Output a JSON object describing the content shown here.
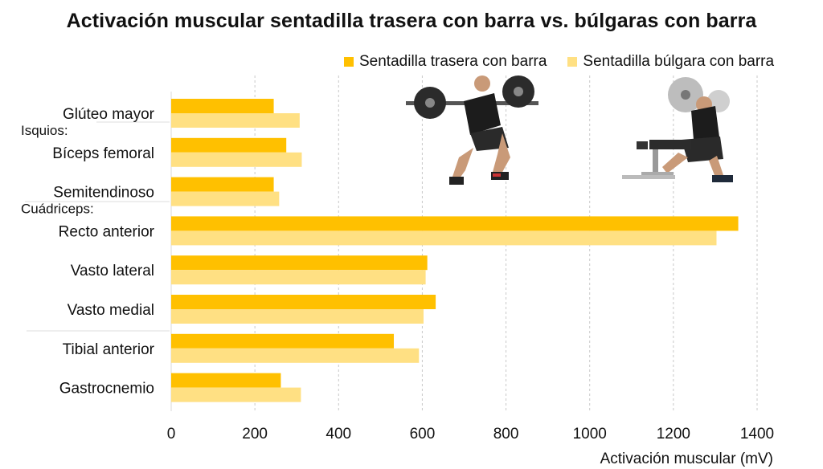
{
  "colors": {
    "squat": "#FFC000",
    "bulgarian": "#FFE083",
    "grid": "#c8c8c8",
    "text": "#111111"
  },
  "chart_data": {
    "type": "bar",
    "orientation": "horizontal",
    "title": "Activación muscular sentadilla trasera con barra vs. búlgaras con barra",
    "xlabel": "Activación muscular (mV)",
    "ylabel": "",
    "xlim": [
      0,
      1400
    ],
    "xticks": [
      0,
      200,
      400,
      600,
      800,
      1000,
      1200,
      1400
    ],
    "grid": "vertical dashed",
    "legend_position": "top-right",
    "categories": [
      "Glúteo mayor",
      "Bíceps femoral",
      "Semitendinoso",
      "Recto anterior",
      "Vasto lateral",
      "Vasto medial",
      "Tibial anterior",
      "Gastrocnemio"
    ],
    "group_labels": [
      {
        "text": "Isquios:",
        "before_category": 1
      },
      {
        "text": "Cuádriceps:",
        "before_category": 3
      }
    ],
    "series": [
      {
        "name": "Sentadilla trasera con barra",
        "values": [
          245,
          275,
          245,
          1355,
          612,
          632,
          532,
          262
        ]
      },
      {
        "name": "Sentadilla búlgara con barra",
        "values": [
          307,
          312,
          258,
          1303,
          608,
          603,
          592,
          310
        ]
      }
    ]
  },
  "images": [
    {
      "name": "back-squat-photo"
    },
    {
      "name": "bulgarian-split-squat-photo"
    }
  ]
}
